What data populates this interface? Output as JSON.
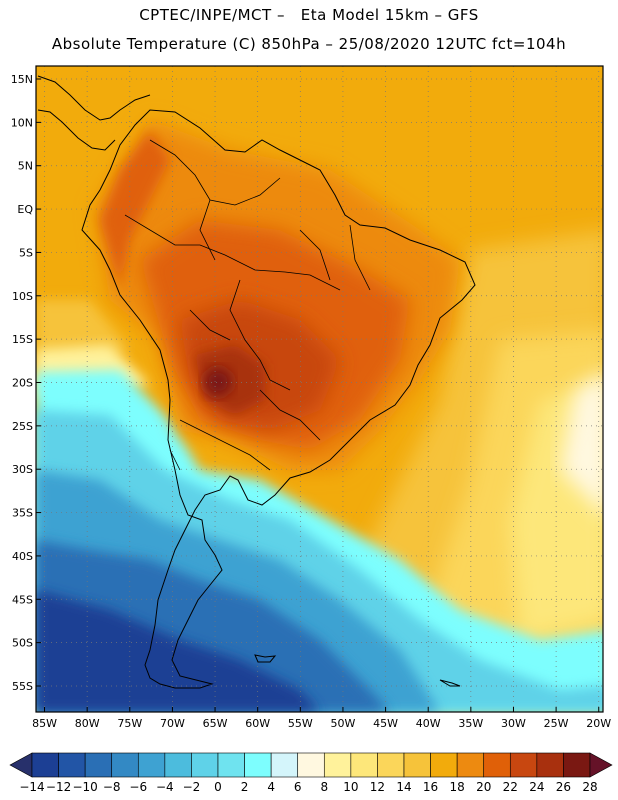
{
  "header": {
    "line1": "CPTEC/INPE/MCT –   Eta Model 15km – GFS",
    "line2": "Absolute Temperature (C) 850hPa – 25/08/2020 12UTC fct=104h"
  },
  "map": {
    "lat_labels": [
      "15N",
      "10N",
      "5N",
      "EQ",
      "5S",
      "10S",
      "15S",
      "20S",
      "25S",
      "30S",
      "35S",
      "40S",
      "45S",
      "50S",
      "55S"
    ],
    "lat_values": [
      15,
      10,
      5,
      0,
      -5,
      -10,
      -15,
      -20,
      -25,
      -30,
      -35,
      -40,
      -45,
      -50,
      -55
    ],
    "lon_labels": [
      "85W",
      "80W",
      "75W",
      "70W",
      "65W",
      "60W",
      "55W",
      "50W",
      "45W",
      "40W",
      "35W",
      "30W",
      "25W",
      "20W"
    ],
    "lon_values": [
      -85,
      -80,
      -75,
      -70,
      -65,
      -60,
      -55,
      -50,
      -45,
      -40,
      -35,
      -30,
      -25,
      -20
    ],
    "lat_range": [
      -58,
      16.5
    ],
    "lon_range": [
      -86,
      -19.5
    ]
  },
  "colorbar": {
    "labels": [
      "-14",
      "-12",
      "-10",
      "-8",
      "-6",
      "-4",
      "-2",
      "0",
      "2",
      "4",
      "6",
      "8",
      "10",
      "12",
      "14",
      "16",
      "18",
      "20",
      "22",
      "24",
      "26",
      "28"
    ],
    "colors": [
      "#27306b",
      "#1c3f94",
      "#2255a6",
      "#2a6fb5",
      "#3389c4",
      "#3ea2d2",
      "#4cbcdd",
      "#5fd2e8",
      "#6fe3ef",
      "#7dfefe",
      "#d4f5fb",
      "#fff8e0",
      "#fff29b",
      "#fde77a",
      "#fbd65a",
      "#f6c33a",
      "#f2ab0c",
      "#ed8a10",
      "#e06008",
      "#c84710",
      "#a8300e",
      "#7a1812",
      "#651228"
    ]
  }
}
